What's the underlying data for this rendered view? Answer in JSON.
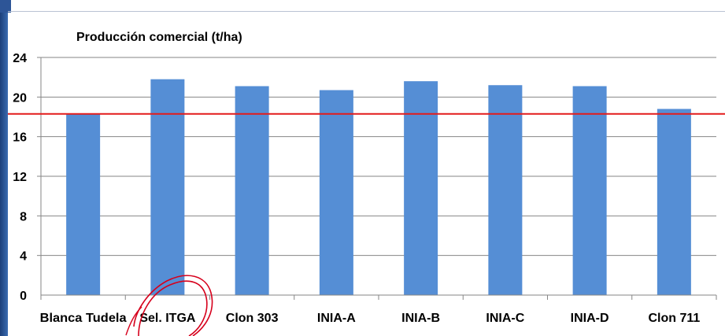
{
  "chart_data": {
    "type": "bar",
    "title": "Producción comercial (t/ha)",
    "xlabel": "",
    "ylabel": "",
    "categories": [
      "Blanca Tudela",
      "Sel. ITGA",
      "Clon 303",
      "INIA-A",
      "INIA-B",
      "INIA-C",
      "INIA-D",
      "Clon 711"
    ],
    "values": [
      18.3,
      21.8,
      21.1,
      20.7,
      21.6,
      21.2,
      21.1,
      18.8
    ],
    "ylim": [
      0,
      24
    ],
    "yticks": [
      0,
      4,
      8,
      12,
      16,
      20,
      24
    ],
    "reference_line": 18.3,
    "grid": "horizontal",
    "legend": "none",
    "colors": {
      "bar": "#558ed5",
      "reference_line": "#e31b1b",
      "grid": "#868686",
      "annotation": "#d6001c",
      "frame": "#2d5597"
    },
    "annotation": "hand-drawn red circle around Sel. ITGA"
  }
}
